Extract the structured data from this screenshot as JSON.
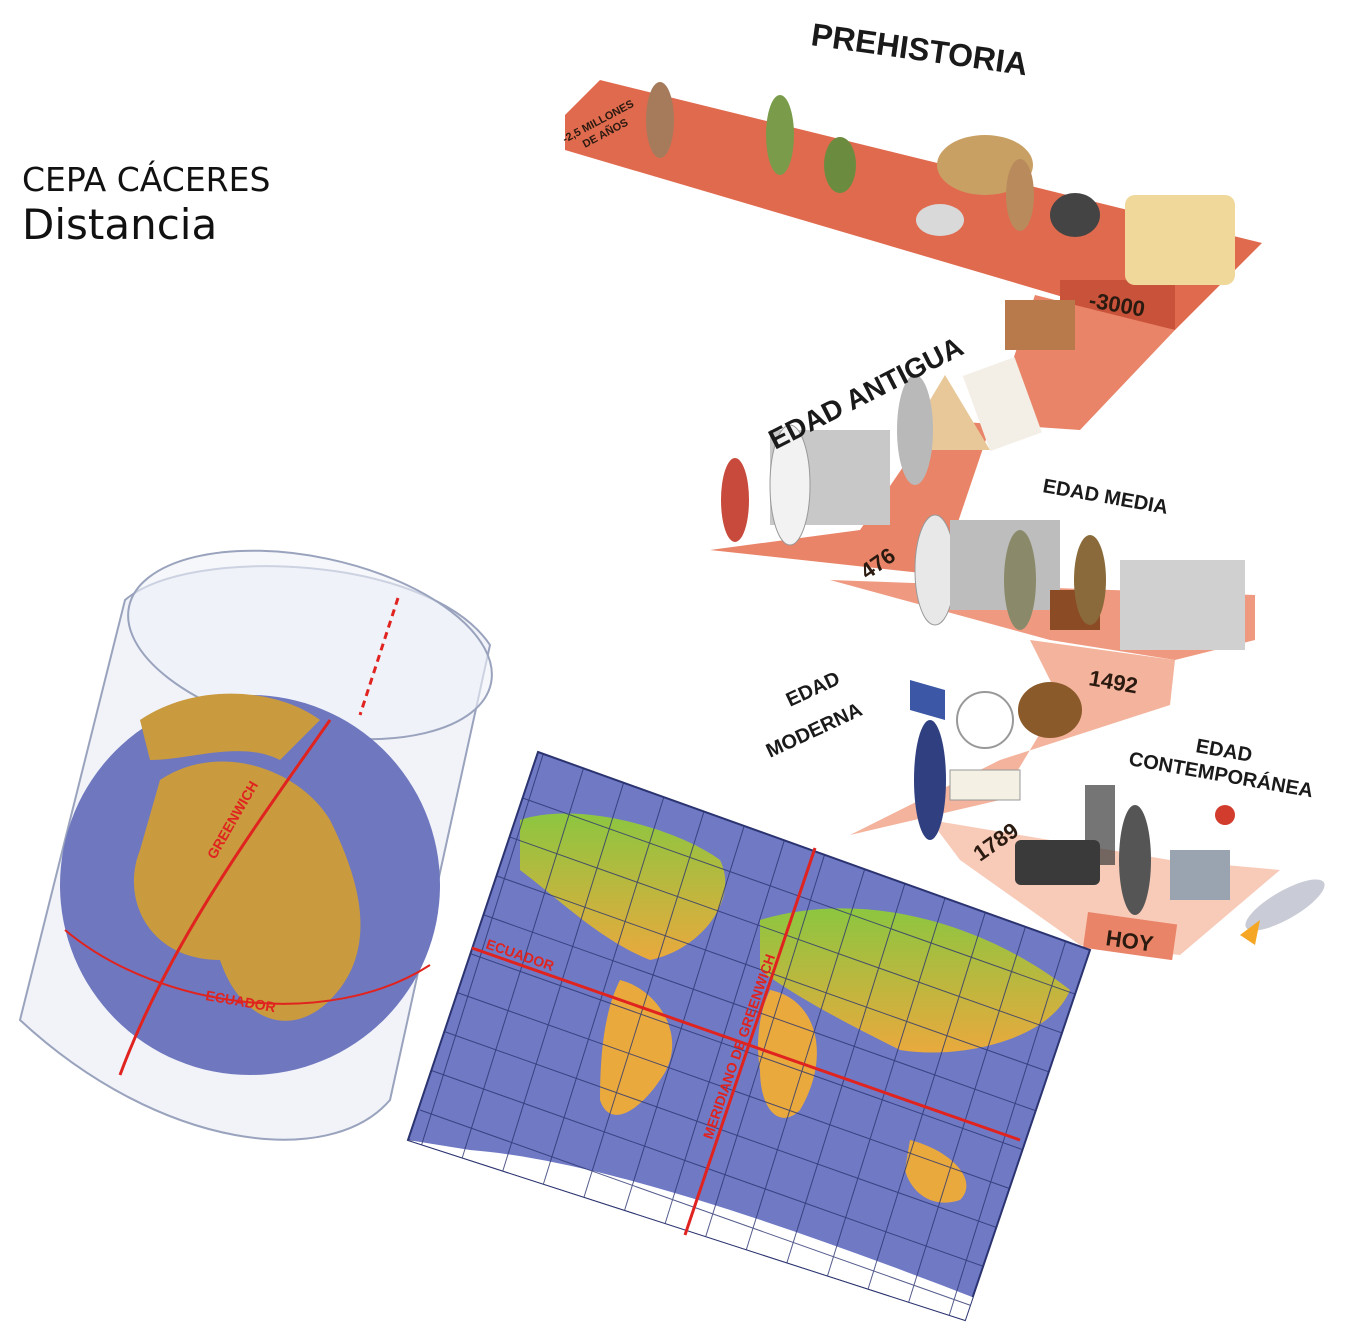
{
  "header": {
    "organization": "CEPA CÁCERES",
    "mode": "Distancia"
  },
  "timeline": {
    "eras": {
      "prehistoria": "PREHISTORIA",
      "antigua": "EDAD ANTIGUA",
      "media": "EDAD MEDIA",
      "moderna_line1": "EDAD",
      "moderna_line2": "MODERNA",
      "contemporanea_line1": "EDAD",
      "contemporanea_line2": "CONTEMPORÁNEA"
    },
    "dates": {
      "start_line1": "-2,5 MILLONES",
      "start_line2": "DE AÑOS",
      "d1": "-3000",
      "d2": "476",
      "d3": "1492",
      "d4": "1789",
      "today": "HOY"
    },
    "colors": {
      "band_1": "#e06a4e",
      "band_2": "#e98468",
      "band_3": "#ef9a80",
      "band_4": "#f4b39c",
      "band_5": "#f8cab8"
    }
  },
  "globe": {
    "greenwich_label": "GREENWICH",
    "equator_label": "ECUADOR",
    "colors": {
      "ocean": "#6f78bf",
      "land": "#c99a3e",
      "line": "#e0231f"
    }
  },
  "map": {
    "equator_label": "ECUADOR",
    "meridian_label": "MERIDIANO DE GREENWICH",
    "colors": {
      "ocean": "#6f79c4",
      "grid": "#2b3470",
      "land_north": "#8cc640",
      "land_south": "#e9a93d",
      "line": "#e0231f"
    }
  }
}
